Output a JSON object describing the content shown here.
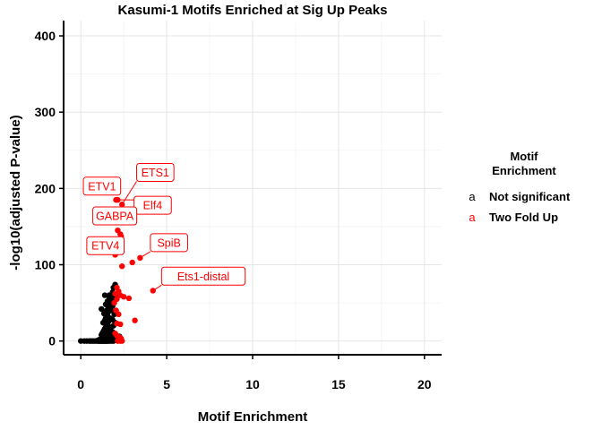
{
  "chart_data": {
    "type": "scatter",
    "title": "Kasumi-1 Motifs Enriched at Sig Up Peaks",
    "xlabel": "Motif Enrichment",
    "ylabel": "-log10(adjusted P-value)",
    "xlim": [
      -1,
      21
    ],
    "ylim": [
      -18,
      420
    ],
    "xticks": [
      0,
      5,
      10,
      15,
      20
    ],
    "yticks": [
      0,
      100,
      200,
      300,
      400
    ],
    "grid": true,
    "legend": {
      "title_lines": [
        "Motif",
        "Enrichment"
      ],
      "placement": "right",
      "key_glyph": "a"
    },
    "series": [
      {
        "name": "Not significant",
        "color": "#000000",
        "points": [
          [
            0.0,
            0
          ],
          [
            0.2,
            0
          ],
          [
            0.35,
            0
          ],
          [
            0.5,
            0
          ],
          [
            0.6,
            0
          ],
          [
            0.7,
            0
          ],
          [
            0.8,
            0
          ],
          [
            0.9,
            0
          ],
          [
            1.0,
            0
          ],
          [
            1.05,
            0
          ],
          [
            1.1,
            0
          ],
          [
            1.15,
            0
          ],
          [
            1.2,
            0
          ],
          [
            1.25,
            0
          ],
          [
            1.3,
            0
          ],
          [
            1.35,
            0
          ],
          [
            1.4,
            0
          ],
          [
            1.45,
            0
          ],
          [
            1.5,
            0
          ],
          [
            1.55,
            0
          ],
          [
            1.6,
            0
          ],
          [
            1.7,
            0
          ],
          [
            1.8,
            0
          ],
          [
            1.9,
            0
          ],
          [
            1.0,
            1
          ],
          [
            1.1,
            2
          ],
          [
            1.2,
            3
          ],
          [
            1.25,
            2
          ],
          [
            1.3,
            4
          ],
          [
            1.35,
            5
          ],
          [
            1.4,
            3
          ],
          [
            1.45,
            6
          ],
          [
            1.5,
            4
          ],
          [
            1.55,
            8
          ],
          [
            1.6,
            5
          ],
          [
            1.65,
            7
          ],
          [
            1.7,
            3
          ],
          [
            1.2,
            8
          ],
          [
            1.25,
            10
          ],
          [
            1.3,
            12
          ],
          [
            1.35,
            14
          ],
          [
            1.4,
            16
          ],
          [
            1.45,
            18
          ],
          [
            1.5,
            20
          ],
          [
            1.55,
            22
          ],
          [
            1.6,
            25
          ],
          [
            1.65,
            28
          ],
          [
            1.7,
            30
          ],
          [
            1.3,
            24
          ],
          [
            1.4,
            27
          ],
          [
            1.5,
            32
          ],
          [
            1.55,
            35
          ],
          [
            1.6,
            38
          ],
          [
            1.65,
            42
          ],
          [
            1.7,
            45
          ],
          [
            1.75,
            48
          ],
          [
            1.8,
            52
          ],
          [
            1.85,
            55
          ],
          [
            1.9,
            58
          ],
          [
            1.95,
            62
          ],
          [
            1.5,
            40
          ],
          [
            1.6,
            44
          ],
          [
            1.7,
            50
          ],
          [
            1.75,
            56
          ],
          [
            1.8,
            60
          ],
          [
            1.85,
            64
          ],
          [
            1.9,
            70
          ],
          [
            2.0,
            74
          ],
          [
            1.65,
            60
          ],
          [
            1.75,
            40
          ],
          [
            1.85,
            46
          ],
          [
            1.95,
            52
          ],
          [
            2.05,
            58
          ],
          [
            1.2,
            42
          ],
          [
            1.35,
            36
          ],
          [
            1.45,
            30
          ],
          [
            1.55,
            15
          ],
          [
            1.75,
            18
          ],
          [
            1.85,
            12
          ],
          [
            1.9,
            8
          ],
          [
            1.95,
            5
          ],
          [
            2.0,
            3
          ],
          [
            2.05,
            2
          ],
          [
            2.1,
            1
          ],
          [
            1.6,
            11
          ],
          [
            1.7,
            9
          ],
          [
            1.8,
            6
          ],
          [
            1.9,
            20
          ],
          [
            2.0,
            24
          ],
          [
            1.45,
            48
          ],
          [
            1.55,
            52
          ],
          [
            1.65,
            55
          ],
          [
            1.4,
            60
          ],
          [
            1.85,
            28
          ],
          [
            1.95,
            35
          ],
          [
            2.05,
            40
          ],
          [
            2.2,
            2
          ],
          [
            2.3,
            4
          ],
          [
            2.25,
            6
          ],
          [
            2.1,
            7
          ],
          [
            2.0,
            210
          ]
        ]
      },
      {
        "name": "Two Fold Up",
        "color": "#ff0000",
        "points": [
          [
            2.05,
            185
          ],
          [
            2.15,
            185
          ],
          [
            2.4,
            179
          ],
          [
            2.5,
            170
          ],
          [
            2.75,
            163
          ],
          [
            2.3,
            164
          ],
          [
            2.15,
            145
          ],
          [
            2.3,
            140
          ],
          [
            2.35,
            137
          ],
          [
            2.3,
            127
          ],
          [
            2.0,
            113
          ],
          [
            3.0,
            103
          ],
          [
            3.45,
            109
          ],
          [
            2.4,
            98
          ],
          [
            4.2,
            66
          ],
          [
            3.15,
            27
          ],
          [
            2.1,
            70
          ],
          [
            2.2,
            65
          ],
          [
            2.0,
            62
          ],
          [
            2.3,
            60
          ],
          [
            2.5,
            58
          ],
          [
            2.8,
            56
          ],
          [
            2.1,
            55
          ],
          [
            1.95,
            50
          ],
          [
            2.05,
            40
          ],
          [
            2.2,
            35
          ],
          [
            2.1,
            23
          ],
          [
            2.3,
            22
          ],
          [
            2.0,
            10
          ],
          [
            2.1,
            7
          ],
          [
            2.25,
            5
          ],
          [
            2.35,
            3
          ],
          [
            2.2,
            1
          ],
          [
            2.4,
            0
          ],
          [
            2.3,
            0
          ],
          [
            2.15,
            0
          ]
        ]
      }
    ],
    "annotations": [
      {
        "text": "ETS1",
        "x": 2.4,
        "y": 179,
        "label_x": 3.25,
        "label_y": 221
      },
      {
        "text": "ETV1",
        "x": 2.05,
        "y": 185,
        "label_x": 0.15,
        "label_y": 203
      },
      {
        "text": "Elf4",
        "x": 2.15,
        "y": 185,
        "label_x": 3.1,
        "label_y": 178
      },
      {
        "text": "GABPA",
        "x": 2.15,
        "y": 145,
        "label_x": 0.7,
        "label_y": 164
      },
      {
        "text": "ETV4",
        "x": 2.0,
        "y": 113,
        "label_x": 0.35,
        "label_y": 125
      },
      {
        "text": "SpiB",
        "x": 3.45,
        "y": 109,
        "label_x": 4.05,
        "label_y": 129
      },
      {
        "text": "Ets1-distal",
        "x": 4.2,
        "y": 66,
        "label_x": 4.7,
        "label_y": 85
      }
    ]
  }
}
